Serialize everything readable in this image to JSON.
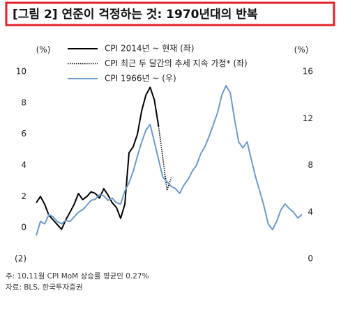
{
  "chart_data": {
    "type": "line",
    "title": "[그림 2] 연준이 걱정하는 것: 1970년대의 반복",
    "y_label": "(%)",
    "y2_label": "(%)",
    "notes": [
      "주: 10,11월 CPI MoM 상승률 평균인 0.27%",
      "자료: BLS, 한국투자증권"
    ],
    "categories": [
      null,
      null,
      null,
      null,
      null,
      null,
      null,
      null,
      null,
      null,
      null,
      null,
      null,
      null,
      null,
      null,
      null,
      null,
      null,
      null,
      null,
      null,
      null,
      null,
      null,
      null,
      null,
      null,
      null,
      null,
      null,
      null,
      null,
      null,
      null,
      null,
      null,
      null,
      null,
      null,
      null,
      null,
      null,
      null,
      null,
      null,
      null,
      null,
      null,
      null,
      null,
      null,
      null,
      null,
      null,
      null,
      null,
      null,
      null,
      null,
      null,
      null,
      null,
      null
    ],
    "ylim": [
      -2,
      10
    ],
    "yticks": [
      {
        "value": -2,
        "label": "(2)"
      },
      0,
      2,
      4,
      6,
      8,
      10
    ],
    "y2lim": [
      0,
      16
    ],
    "y2ticks": [
      0,
      4,
      8,
      12,
      16
    ],
    "grid": false,
    "series": [
      {
        "name": "CPI 2014년 ~ 현재 (좌)",
        "color": "#000000",
        "style": "solid",
        "axis": "y",
        "values": [
          1.6,
          2.0,
          1.5,
          0.8,
          0.5,
          0.2,
          -0.1,
          0.5,
          1.0,
          1.5,
          2.2,
          1.8,
          2.0,
          2.3,
          2.2,
          1.9,
          2.5,
          2.1,
          1.6,
          1.3,
          0.6,
          1.5,
          4.8,
          5.2,
          6.0,
          7.5,
          8.5,
          9.0,
          8.2,
          6.5,
          null,
          null,
          null,
          null,
          null,
          null,
          null,
          null,
          null,
          null,
          null,
          null,
          null,
          null,
          null,
          null,
          null,
          null,
          null,
          null,
          null,
          null,
          null,
          null,
          null,
          null,
          null,
          null,
          null,
          null,
          null,
          null,
          null,
          null
        ]
      },
      {
        "name": "CPI 최근 두 달간의 추세 지속 가정* (좌)",
        "color": "#000000",
        "style": "dotted",
        "axis": "y",
        "values": [
          null,
          null,
          null,
          null,
          null,
          null,
          null,
          null,
          null,
          null,
          null,
          null,
          null,
          null,
          null,
          null,
          null,
          null,
          null,
          null,
          null,
          null,
          null,
          null,
          null,
          null,
          null,
          null,
          null,
          6.5,
          4.5,
          2.4,
          3.2,
          null,
          null,
          null,
          null,
          null,
          null,
          null,
          null,
          null,
          null,
          null,
          null,
          null,
          null,
          null,
          null,
          null,
          null,
          null,
          null,
          null,
          null,
          null,
          null,
          null,
          null,
          null,
          null,
          null,
          null,
          null
        ]
      },
      {
        "name": "CPI 1966년 ~ (우)",
        "color": "#6d9ac8",
        "style": "solid",
        "axis": "y2",
        "values": [
          2.0,
          3.2,
          3.0,
          3.8,
          3.6,
          3.2,
          3.0,
          3.3,
          3.2,
          3.6,
          4.0,
          4.2,
          4.6,
          5.0,
          5.1,
          5.5,
          5.4,
          5.0,
          5.2,
          4.8,
          4.7,
          5.8,
          6.5,
          7.5,
          8.8,
          10.0,
          11.0,
          11.5,
          10.0,
          8.5,
          7.0,
          6.6,
          6.2,
          6.0,
          5.6,
          6.3,
          6.8,
          7.5,
          8.0,
          9.0,
          9.6,
          10.5,
          11.5,
          12.5,
          14.0,
          14.8,
          14.2,
          12.0,
          10.0,
          9.5,
          10.0,
          8.5,
          7.0,
          5.8,
          4.5,
          3.0,
          2.5,
          3.2,
          4.2,
          4.7,
          4.3,
          4.0,
          3.5,
          3.8
        ]
      }
    ]
  }
}
